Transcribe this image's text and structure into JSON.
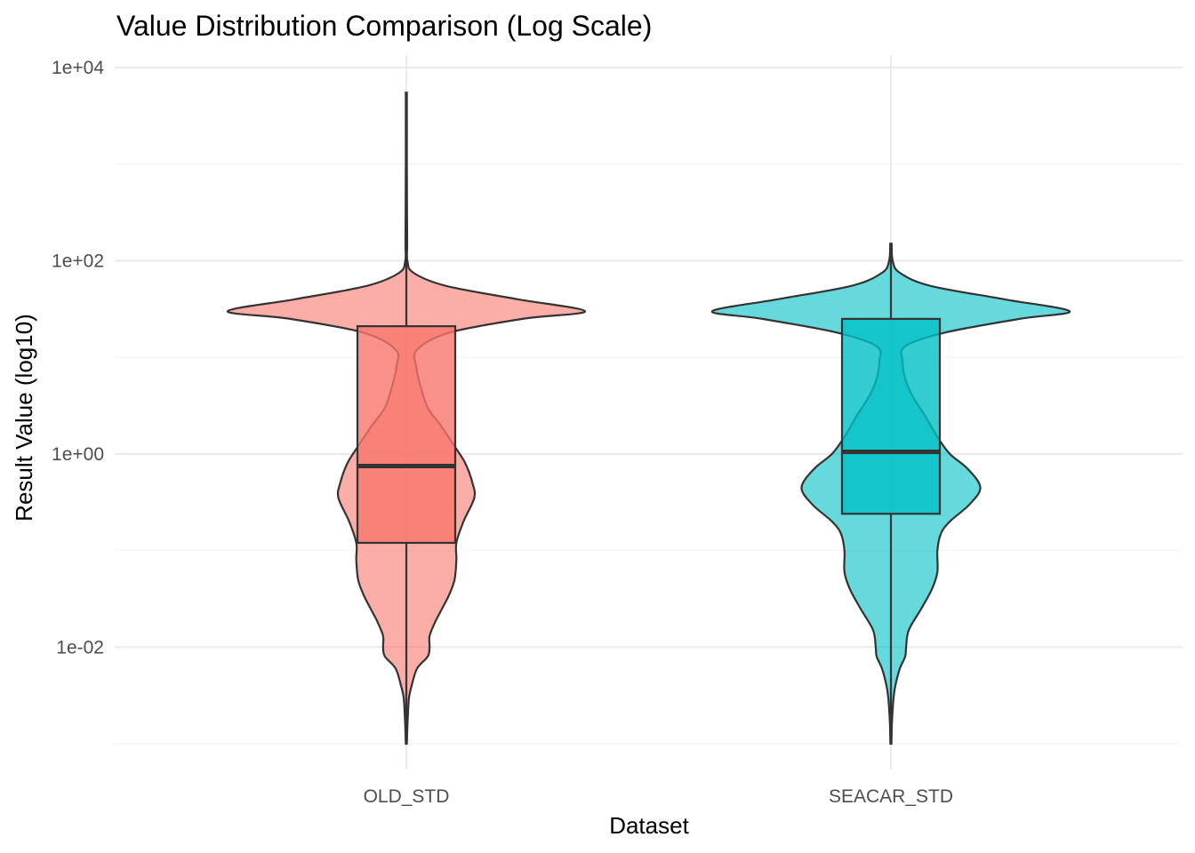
{
  "chart_data": {
    "type": "violin",
    "title": "Value Distribution Comparison (Log Scale)",
    "xlabel": "Dataset",
    "ylabel": "Result Value (log10)",
    "y_scale": "log10",
    "ylim": [
      0.001,
      10000
    ],
    "y_ticks": [
      {
        "value": 0.01,
        "label": "1e-02"
      },
      {
        "value": 1,
        "label": "1e+00"
      },
      {
        "value": 100,
        "label": "1e+02"
      },
      {
        "value": 10000,
        "label": "1e+04"
      }
    ],
    "y_minor_ticks": [
      0.001,
      0.1,
      10,
      1000
    ],
    "grid": true,
    "legend": "none",
    "categories": [
      "OLD_STD",
      "SEACAR_STD"
    ],
    "series": [
      {
        "category": "OLD_STD",
        "color": "#F8766D",
        "min": 0.001,
        "q1": 0.12,
        "median": 0.75,
        "q3": 21,
        "max": 5500,
        "violin_profile": [
          [
            0.001,
            0.003
          ],
          [
            0.0015,
            0.006
          ],
          [
            0.002,
            0.009
          ],
          [
            0.003,
            0.015
          ],
          [
            0.004,
            0.03
          ],
          [
            0.006,
            0.06
          ],
          [
            0.008,
            0.12
          ],
          [
            0.01,
            0.13
          ],
          [
            0.013,
            0.13
          ],
          [
            0.018,
            0.16
          ],
          [
            0.025,
            0.2
          ],
          [
            0.035,
            0.24
          ],
          [
            0.05,
            0.27
          ],
          [
            0.08,
            0.28
          ],
          [
            0.12,
            0.28
          ],
          [
            0.2,
            0.32
          ],
          [
            0.35,
            0.38
          ],
          [
            0.5,
            0.37
          ],
          [
            0.8,
            0.33
          ],
          [
            1.2,
            0.27
          ],
          [
            2,
            0.19
          ],
          [
            3,
            0.12
          ],
          [
            5,
            0.08
          ],
          [
            8,
            0.055
          ],
          [
            12,
            0.06
          ],
          [
            18,
            0.24
          ],
          [
            25,
            0.65
          ],
          [
            30,
            1.0
          ],
          [
            40,
            0.62
          ],
          [
            55,
            0.22
          ],
          [
            75,
            0.04
          ],
          [
            100,
            0.006
          ],
          [
            150,
            0.005
          ],
          [
            300,
            0.004
          ],
          [
            1000,
            0.003
          ],
          [
            5500,
            0.003
          ]
        ]
      },
      {
        "category": "SEACAR_STD",
        "color": "#00BFC4",
        "min": 0.001,
        "q1": 0.24,
        "median": 1.05,
        "q3": 25,
        "max": 150,
        "violin_profile": [
          [
            0.001,
            0.003
          ],
          [
            0.0015,
            0.005
          ],
          [
            0.002,
            0.008
          ],
          [
            0.003,
            0.015
          ],
          [
            0.004,
            0.025
          ],
          [
            0.006,
            0.05
          ],
          [
            0.008,
            0.08
          ],
          [
            0.01,
            0.085
          ],
          [
            0.015,
            0.1
          ],
          [
            0.025,
            0.17
          ],
          [
            0.04,
            0.23
          ],
          [
            0.06,
            0.26
          ],
          [
            0.1,
            0.26
          ],
          [
            0.15,
            0.28
          ],
          [
            0.2,
            0.33
          ],
          [
            0.3,
            0.44
          ],
          [
            0.45,
            0.5
          ],
          [
            0.7,
            0.43
          ],
          [
            1,
            0.33
          ],
          [
            1.5,
            0.26
          ],
          [
            2.5,
            0.19
          ],
          [
            4,
            0.12
          ],
          [
            6,
            0.08
          ],
          [
            9,
            0.065
          ],
          [
            13,
            0.08
          ],
          [
            18,
            0.3
          ],
          [
            25,
            0.72
          ],
          [
            30,
            1.0
          ],
          [
            40,
            0.63
          ],
          [
            55,
            0.22
          ],
          [
            75,
            0.05
          ],
          [
            100,
            0.01
          ],
          [
            150,
            0.004
          ]
        ]
      }
    ]
  }
}
